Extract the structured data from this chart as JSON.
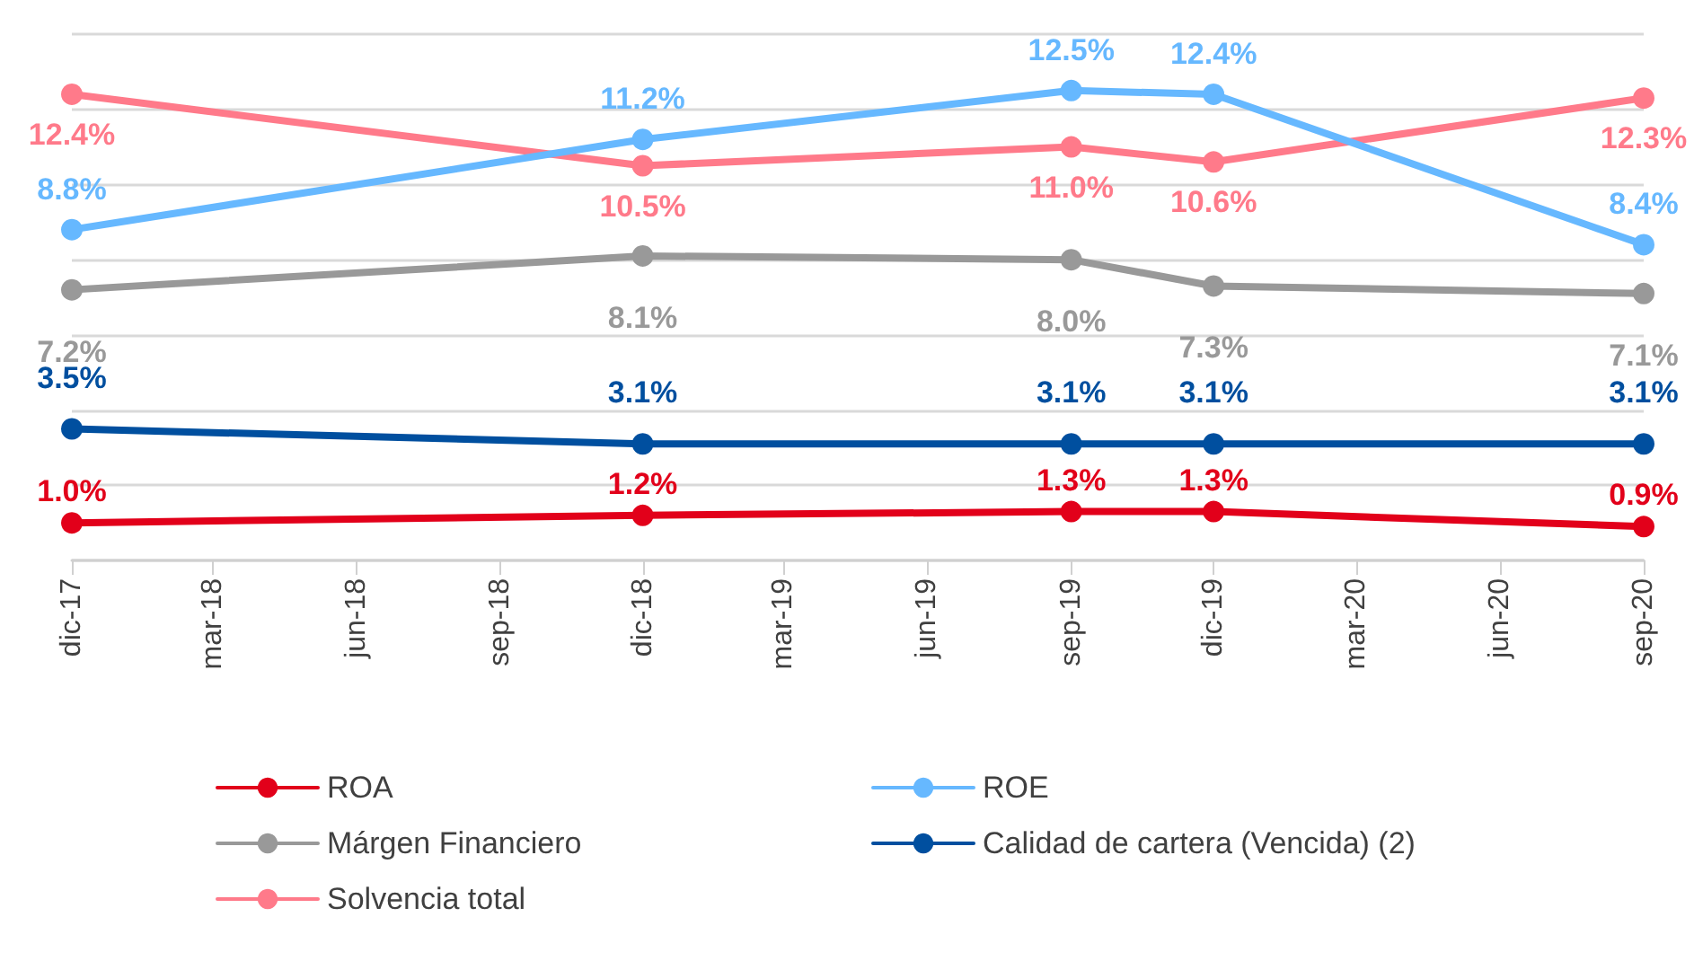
{
  "chart_data": {
    "type": "line",
    "x": [
      "2017-12",
      "2018-12",
      "2019-09",
      "2019-12",
      "2020-09"
    ],
    "xlim": [
      "2017-12",
      "2020-09"
    ],
    "xticks": [
      {
        "value": "2017-12",
        "label": "dic-17"
      },
      {
        "value": "2018-03",
        "label": "mar-18"
      },
      {
        "value": "2018-06",
        "label": "jun-18"
      },
      {
        "value": "2018-09",
        "label": "sep-18"
      },
      {
        "value": "2018-12",
        "label": "dic-18"
      },
      {
        "value": "2019-03",
        "label": "mar-19"
      },
      {
        "value": "2019-06",
        "label": "jun-19"
      },
      {
        "value": "2019-09",
        "label": "sep-19"
      },
      {
        "value": "2019-12",
        "label": "dic-19"
      },
      {
        "value": "2020-03",
        "label": "mar-20"
      },
      {
        "value": "2020-06",
        "label": "jun-20"
      },
      {
        "value": "2020-09",
        "label": "sep-20"
      }
    ],
    "ylim": [
      0,
      14
    ],
    "yticks": [
      0,
      2,
      4,
      6,
      8,
      10,
      12,
      14
    ],
    "series": [
      {
        "name": "ROA",
        "color": "#e2001a",
        "values": [
          1.0,
          1.2,
          1.3,
          1.3,
          0.9
        ],
        "value_labels": [
          "1.0%",
          "1.2%",
          "1.3%",
          "1.3%",
          "0.9%"
        ]
      },
      {
        "name": "ROE",
        "color": "#66b8ff",
        "values": [
          8.8,
          11.2,
          12.5,
          12.4,
          8.4
        ],
        "value_labels": [
          "8.8%",
          "11.2%",
          "12.5%",
          "12.4%",
          "8.4%"
        ]
      },
      {
        "name": "Márgen Financiero",
        "color": "#999999",
        "values": [
          7.2,
          8.1,
          8.0,
          7.3,
          7.1
        ],
        "value_labels": [
          "7.2%",
          "8.1%",
          "8.0%",
          "7.3%",
          "7.1%"
        ]
      },
      {
        "name": "Calidad de cartera (Vencida) (2)",
        "color": "#004f9f",
        "values": [
          3.5,
          3.1,
          3.1,
          3.1,
          3.1
        ],
        "value_labels": [
          "3.5%",
          "3.1%",
          "3.1%",
          "3.1%",
          "3.1%"
        ]
      },
      {
        "name": "Solvencia total",
        "color": "#ff7a8a",
        "values": [
          12.4,
          10.5,
          11.0,
          10.6,
          12.3
        ],
        "value_labels": [
          "12.4%",
          "10.5%",
          "11.0%",
          "10.6%",
          "12.3%"
        ]
      }
    ],
    "grid": "y",
    "legend": "bottom",
    "tick_labels": "x",
    "marker": "circle",
    "line_style": "solid"
  }
}
